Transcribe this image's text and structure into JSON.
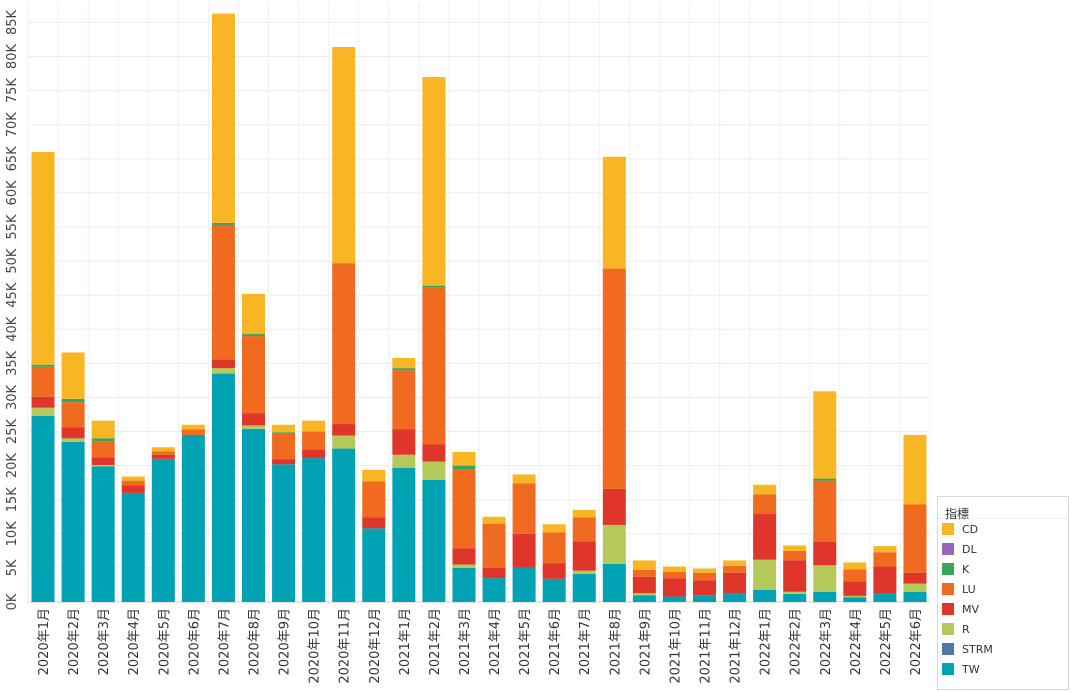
{
  "chart_data": {
    "type": "bar",
    "stacked": true,
    "categories": [
      "2020年1月",
      "2020年2月",
      "2020年3月",
      "2020年4月",
      "2020年5月",
      "2020年6月",
      "2020年7月",
      "2020年8月",
      "2020年9月",
      "2020年10月",
      "2020年11月",
      "2020年12月",
      "2021年1月",
      "2021年2月",
      "2021年3月",
      "2021年4月",
      "2021年5月",
      "2021年6月",
      "2021年7月",
      "2021年8月",
      "2021年9月",
      "2021年10月",
      "2021年11月",
      "2021年12月",
      "2022年1月",
      "2022年2月",
      "2022年3月",
      "2022年4月",
      "2022年5月",
      "2022年6月"
    ],
    "y_ticks": [
      "0K",
      "5K",
      "10K",
      "15K",
      "20K",
      "25K",
      "30K",
      "35K",
      "40K",
      "45K",
      "50K",
      "55K",
      "60K",
      "65K",
      "70K",
      "75K",
      "80K",
      "85K"
    ],
    "ylim": [
      0,
      88000
    ],
    "grid": true,
    "legend_position": "bottom-right",
    "series": [
      {
        "name": "TW",
        "color": "#00a2b3",
        "values": [
          27300,
          23500,
          19900,
          16000,
          21000,
          24500,
          33500,
          25400,
          20200,
          21100,
          22500,
          10800,
          19700,
          17900,
          5000,
          3500,
          5000,
          3400,
          4100,
          5600,
          1000,
          800,
          1000,
          1200,
          1800,
          1200,
          1500,
          700,
          1200,
          1500
        ]
      },
      {
        "name": "STRM",
        "color": "#4e79a7",
        "values": [
          0,
          0,
          0,
          0,
          0,
          0,
          0,
          0,
          0,
          0,
          0,
          0,
          0,
          0,
          0,
          0,
          0,
          0,
          0,
          0,
          0,
          0,
          0,
          0,
          0,
          0,
          0,
          0,
          0,
          0
        ]
      },
      {
        "name": "R",
        "color": "#b5c95a",
        "values": [
          1200,
          500,
          200,
          0,
          0,
          0,
          800,
          500,
          0,
          0,
          1900,
          0,
          1900,
          2700,
          500,
          0,
          0,
          0,
          500,
          5700,
          300,
          0,
          0,
          0,
          4400,
          300,
          3900,
          200,
          0,
          1200
        ]
      },
      {
        "name": "MV",
        "color": "#e0352b",
        "values": [
          1600,
          1600,
          1100,
          1100,
          600,
          0,
          1300,
          1800,
          700,
          1300,
          1700,
          1600,
          3700,
          2500,
          2400,
          1500,
          5000,
          2300,
          4300,
          5300,
          2400,
          2700,
          2200,
          3100,
          6700,
          4600,
          3400,
          2100,
          4000,
          1600
        ]
      },
      {
        "name": "LU",
        "color": "#f06b1f",
        "values": [
          4400,
          3700,
          2400,
          700,
          500,
          800,
          19700,
          11300,
          3800,
          2600,
          23600,
          5300,
          8700,
          23000,
          11600,
          6500,
          7400,
          4500,
          3500,
          32300,
          1000,
          900,
          1100,
          1000,
          2900,
          1400,
          9000,
          1800,
          2100,
          10000
        ]
      },
      {
        "name": "K",
        "color": "#3aa55a",
        "values": [
          300,
          500,
          400,
          0,
          0,
          0,
          300,
          300,
          200,
          0,
          0,
          0,
          300,
          300,
          500,
          0,
          0,
          0,
          0,
          0,
          0,
          0,
          0,
          0,
          0,
          0,
          300,
          0,
          0,
          0
        ]
      },
      {
        "name": "DL",
        "color": "#9467bd",
        "values": [
          0,
          0,
          0,
          0,
          0,
          0,
          0,
          0,
          0,
          0,
          0,
          0,
          0,
          0,
          0,
          0,
          0,
          0,
          0,
          0,
          0,
          0,
          0,
          0,
          0,
          0,
          0,
          0,
          0,
          0
        ]
      },
      {
        "name": "CD",
        "color": "#f8b624",
        "values": [
          31200,
          6800,
          2600,
          600,
          600,
          700,
          30700,
          5900,
          1100,
          1600,
          31700,
          1700,
          1500,
          30600,
          2000,
          1000,
          1300,
          1200,
          1100,
          16400,
          1400,
          800,
          600,
          800,
          1400,
          800,
          12800,
          1000,
          900,
          10200
        ]
      }
    ]
  },
  "legend": {
    "title": "指標",
    "items": [
      {
        "label": "CD",
        "color": "#f8b624"
      },
      {
        "label": "DL",
        "color": "#9467bd"
      },
      {
        "label": "K",
        "color": "#3aa55a"
      },
      {
        "label": "LU",
        "color": "#f06b1f"
      },
      {
        "label": "MV",
        "color": "#e0352b"
      },
      {
        "label": "R",
        "color": "#b5c95a"
      },
      {
        "label": "STRM",
        "color": "#4e79a7"
      },
      {
        "label": "TW",
        "color": "#00a2b3"
      }
    ]
  }
}
